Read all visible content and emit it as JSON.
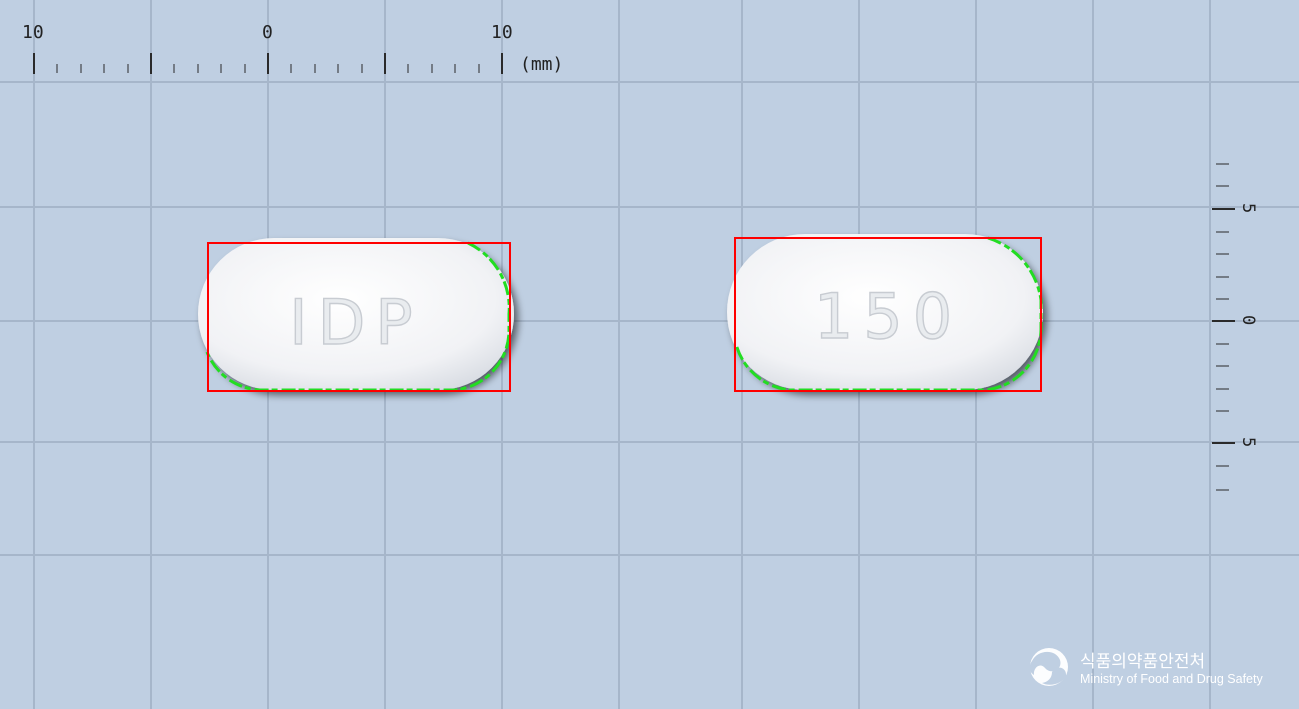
{
  "ruler_top": {
    "labels": [
      "10",
      "0",
      "10"
    ],
    "unit": "(mm)"
  },
  "ruler_right": {
    "labels": [
      "5",
      "0",
      "5"
    ]
  },
  "tablets": [
    {
      "imprint": "IDP"
    },
    {
      "imprint": "150"
    }
  ],
  "logo": {
    "korean": "식품의약품안전처",
    "english": "Ministry of Food and Drug Safety"
  },
  "colors": {
    "background": "#bfcfe2",
    "grid": "#a6b6ca",
    "bounding_box": "#ff0000",
    "contour": "#22dd22",
    "tablet": "#f4f5f7"
  }
}
